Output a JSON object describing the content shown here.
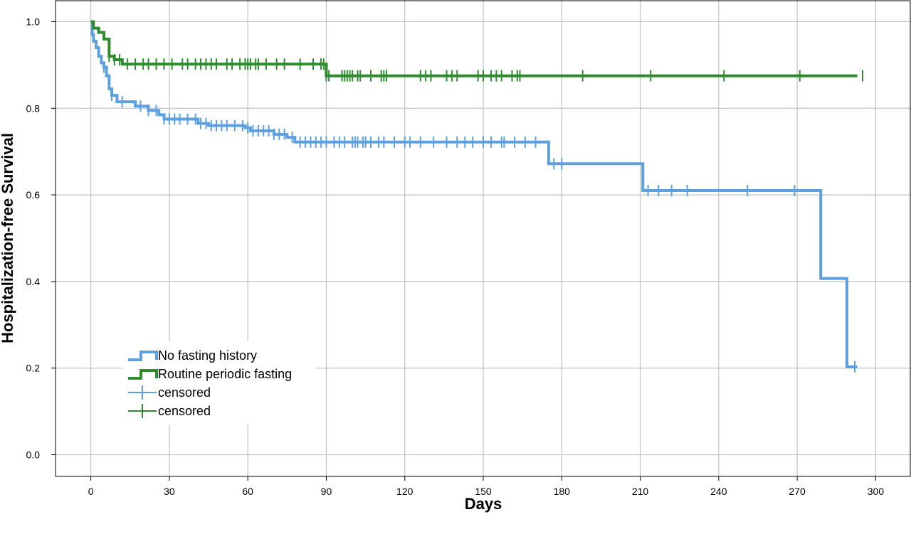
{
  "chart_data": {
    "type": "line",
    "step": true,
    "xlabel": "Days",
    "ylabel": "Hospitalization-free Survival",
    "xlim": [
      -13.5,
      313.5
    ],
    "ylim": [
      -0.05,
      1.05
    ],
    "xticks": [
      0,
      30,
      60,
      90,
      120,
      150,
      180,
      210,
      240,
      270,
      300
    ],
    "yticks": [
      0.0,
      0.2,
      0.4,
      0.6,
      0.8,
      1.0
    ],
    "ytick_labels": [
      "0.0",
      "0.2",
      "0.4",
      "0.6",
      "0.8",
      "1.0"
    ],
    "grid": true,
    "legend_position": "lower-left",
    "series": [
      {
        "name": "No fasting history",
        "color": "#5ca0e0",
        "steps": [
          [
            0,
            1.0
          ],
          [
            0.5,
            0.97
          ],
          [
            1,
            0.955
          ],
          [
            2,
            0.94
          ],
          [
            3,
            0.92
          ],
          [
            4,
            0.905
          ],
          [
            5,
            0.895
          ],
          [
            6,
            0.875
          ],
          [
            7,
            0.845
          ],
          [
            8,
            0.83
          ],
          [
            10,
            0.815
          ],
          [
            17,
            0.805
          ],
          [
            22,
            0.795
          ],
          [
            26,
            0.785
          ],
          [
            28,
            0.775
          ],
          [
            41,
            0.765
          ],
          [
            45,
            0.76
          ],
          [
            59,
            0.755
          ],
          [
            61,
            0.748
          ],
          [
            70,
            0.74
          ],
          [
            75,
            0.733
          ],
          [
            78,
            0.722
          ],
          [
            175,
            0.672
          ],
          [
            211,
            0.61
          ],
          [
            279,
            0.407
          ],
          [
            289,
            0.203
          ],
          [
            293,
            0.203
          ]
        ],
        "censored": [
          5,
          8,
          12,
          19,
          22,
          25,
          28,
          30,
          32,
          34,
          37,
          40,
          42,
          44,
          46,
          48,
          50,
          52,
          55,
          58,
          60,
          62,
          64,
          66,
          68,
          70,
          72,
          74,
          77,
          80,
          82,
          84,
          86,
          88,
          90,
          93,
          95,
          97,
          100,
          101,
          102,
          104,
          105,
          107,
          110,
          112,
          116,
          120,
          122,
          126,
          131,
          136,
          140,
          143,
          146,
          150,
          153,
          157,
          158,
          162,
          166,
          170,
          177,
          180,
          213,
          217,
          222,
          228,
          251,
          269,
          292
        ]
      },
      {
        "name": "Routine periodic fasting",
        "color": "#2e8b2e",
        "steps": [
          [
            0,
            1.0
          ],
          [
            1,
            0.985
          ],
          [
            3,
            0.975
          ],
          [
            5,
            0.96
          ],
          [
            7,
            0.92
          ],
          [
            9,
            0.912
          ],
          [
            12,
            0.902
          ],
          [
            90,
            0.875
          ],
          [
            293,
            0.875
          ]
        ],
        "censored": [
          7,
          9,
          11,
          14,
          17,
          20,
          22,
          25,
          28,
          31,
          35,
          37,
          40,
          42,
          44,
          46,
          48,
          52,
          54,
          57,
          59,
          60,
          61,
          63,
          64,
          67,
          71,
          74,
          80,
          85,
          88,
          89,
          90,
          91,
          96,
          97,
          98,
          99,
          100,
          102,
          103,
          107,
          111,
          112,
          113,
          126,
          128,
          130,
          136,
          138,
          140,
          148,
          150,
          153,
          155,
          157,
          161,
          163,
          164,
          188,
          214,
          242,
          271,
          295
        ]
      }
    ],
    "legend": [
      {
        "label": "No fasting history",
        "kind": "step",
        "color": "#5ca0e0"
      },
      {
        "label": "Routine periodic fasting",
        "kind": "step",
        "color": "#2e8b2e"
      },
      {
        "label": "censored",
        "kind": "censor",
        "color": "#5ca0e0"
      },
      {
        "label": "censored",
        "kind": "censor",
        "color": "#2e8b2e"
      }
    ]
  }
}
